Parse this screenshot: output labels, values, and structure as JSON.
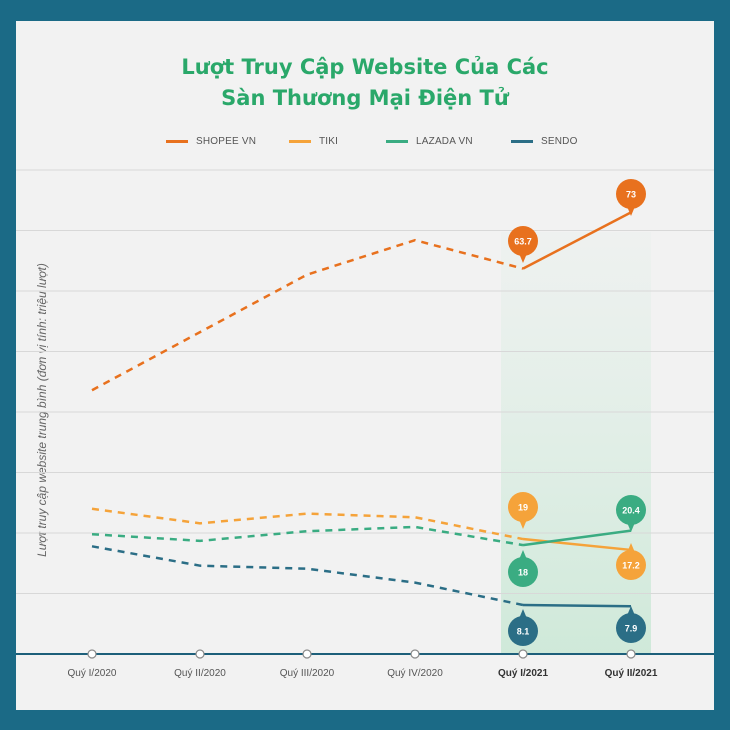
{
  "chart_data": {
    "type": "line",
    "title_lines": [
      "Lượt Truy Cập Website Của Các",
      "Sàn Thương Mại Điện Tử"
    ],
    "ylabel": "Lượt truy cập website trung bình (đơn vị tính: triệu lượt)",
    "categories": [
      "Quý I/2020",
      "Quý II/2020",
      "Quý III/2020",
      "Quý IV/2020",
      "Quý I/2021",
      "Quý II/2021"
    ],
    "highlight_categories": [
      "Quý I/2021",
      "Quý II/2021"
    ],
    "ylim": [
      0,
      80
    ],
    "grid": true,
    "legend_position": "top",
    "series": [
      {
        "name": "SHOPEE VN",
        "color": "#e8711e",
        "values": [
          43.6,
          53.2,
          62.7,
          68.4,
          63.7,
          73
        ],
        "labels": [
          null,
          null,
          null,
          null,
          "63.7",
          "73"
        ],
        "label_side": "above"
      },
      {
        "name": "TIKI",
        "color": "#f5a33a",
        "values": [
          24.0,
          21.6,
          23.2,
          22.6,
          19,
          17.2
        ],
        "labels": [
          null,
          null,
          null,
          null,
          "19",
          "17.2"
        ],
        "label_side": "mixed"
      },
      {
        "name": "LAZADA VN",
        "color": "#3aac82",
        "values": [
          19.8,
          18.7,
          20.3,
          21.0,
          18,
          20.4
        ],
        "labels": [
          null,
          null,
          null,
          null,
          "18",
          "20.4"
        ],
        "label_side": "mixed"
      },
      {
        "name": "SENDO",
        "color": "#2b6e86",
        "values": [
          17.8,
          14.6,
          14.1,
          11.8,
          8.1,
          7.9
        ],
        "labels": [
          null,
          null,
          null,
          null,
          "8.1",
          "7.9"
        ],
        "label_side": "below"
      }
    ]
  }
}
